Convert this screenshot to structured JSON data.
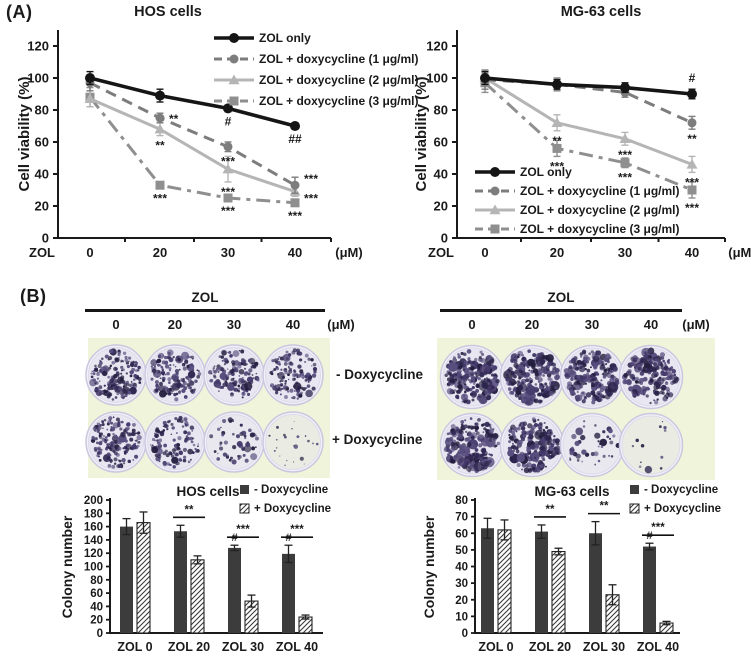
{
  "panel_a": {
    "label": "(A)"
  },
  "panel_b": {
    "label": "(B)",
    "row_labels": [
      "- Doxycycline",
      "+ Doxycycline"
    ],
    "assays": [
      {
        "cell_line": "HOS",
        "header": "ZOL",
        "concentrations": [
          "0",
          "20",
          "30",
          "40"
        ],
        "unit": "(μM)",
        "colony_density": [
          [
            170,
            160,
            145,
            125
          ],
          [
            170,
            115,
            52,
            22
          ]
        ]
      },
      {
        "cell_line": "MG-63",
        "header": "ZOL",
        "concentrations": [
          "0",
          "20",
          "30",
          "40"
        ],
        "unit": "(μM)",
        "colony_density": [
          [
            210,
            205,
            200,
            185
          ],
          [
            215,
            200,
            40,
            12
          ]
        ]
      }
    ],
    "colors": {
      "tray_bg": "#f0f4da",
      "dish_rim": "#cbc7e0",
      "dish_fill": "#e8e6f1",
      "dish_fill_mid": "#e9e8ef",
      "dish_fill_sparse": "#eaece3",
      "colony": "#342a58"
    }
  },
  "chart_data": [
    {
      "id": "hos-viability",
      "type": "line",
      "title": "HOS cells",
      "x_axis_label": "ZOL",
      "x_unit": "(μM)",
      "categories": [
        "0",
        "20",
        "30",
        "40"
      ],
      "ylabel": "Cell viability (%)",
      "ylim": [
        0,
        130
      ],
      "yticks": [
        0,
        20,
        40,
        60,
        80,
        100,
        120
      ],
      "grid": false,
      "legend_position": "top-right",
      "series": [
        {
          "name": "ZOL only",
          "values": [
            100,
            89,
            81,
            70
          ],
          "err": [
            4,
            4,
            2,
            2
          ],
          "sig": [
            "",
            "",
            "#",
            "##"
          ],
          "sig_pos": [
            "",
            "",
            "b",
            "b"
          ],
          "color": "#151515",
          "dash": "solid",
          "marker": "circle"
        },
        {
          "name": "ZOL + doxycycline (1 μg/ml)",
          "values": [
            97,
            75,
            57,
            33
          ],
          "err": [
            5,
            3,
            3,
            5
          ],
          "sig": [
            "",
            "**",
            "***",
            "***"
          ],
          "sig_pos": [
            "",
            "r",
            "b",
            "ru"
          ],
          "color": "#7d7d7d",
          "dash": "dashed",
          "marker": "circle"
        },
        {
          "name": "ZOL + doxycycline (2 μg/ml)",
          "values": [
            87,
            68,
            43,
            29
          ],
          "err": [
            5,
            4,
            8,
            3
          ],
          "sig": [
            "",
            "**",
            "***",
            "***"
          ],
          "sig_pos": [
            "",
            "b",
            "b",
            "rd"
          ],
          "color": "#b5b5b5",
          "dash": "solid",
          "marker": "triangle"
        },
        {
          "name": "ZOL + doxycycline (3 μg/ml)",
          "values": [
            88,
            33,
            25,
            22
          ],
          "err": [
            6,
            2,
            2,
            2
          ],
          "sig": [
            "",
            "***",
            "***",
            "***"
          ],
          "sig_pos": [
            "",
            "b",
            "b",
            "b"
          ],
          "color": "#8f8f8f",
          "dash": "dashdot",
          "marker": "square"
        }
      ]
    },
    {
      "id": "mg63-viability",
      "type": "line",
      "title": "MG-63 cells",
      "x_axis_label": "ZOL",
      "x_unit": "(μM)",
      "categories": [
        "0",
        "20",
        "30",
        "40"
      ],
      "ylabel": "Cell viability (%)",
      "ylim": [
        0,
        130
      ],
      "yticks": [
        0,
        20,
        40,
        60,
        80,
        100,
        120
      ],
      "grid": false,
      "legend_position": "bottom-left",
      "series": [
        {
          "name": "ZOL only",
          "values": [
            100,
            96,
            94,
            90
          ],
          "err": [
            4,
            3,
            3,
            3
          ],
          "sig": [
            "",
            "",
            "",
            "#"
          ],
          "sig_pos": [
            "",
            "",
            "",
            "a"
          ],
          "color": "#151515",
          "dash": "solid",
          "marker": "circle"
        },
        {
          "name": "ZOL + doxycycline (1 μg/ml)",
          "values": [
            99,
            96,
            91,
            72
          ],
          "err": [
            6,
            4,
            3,
            4
          ],
          "sig": [
            "",
            "",
            "",
            "**"
          ],
          "sig_pos": [
            "",
            "",
            "",
            "b"
          ],
          "color": "#7d7d7d",
          "dash": "dashed",
          "marker": "circle"
        },
        {
          "name": "ZOL + doxycycline (2 μg/ml)",
          "values": [
            100,
            72,
            62,
            46
          ],
          "err": [
            4,
            5,
            4,
            5
          ],
          "sig": [
            "",
            "**",
            "***",
            "***"
          ],
          "sig_pos": [
            "",
            "b",
            "b",
            "b"
          ],
          "color": "#b5b5b5",
          "dash": "solid",
          "marker": "triangle"
        },
        {
          "name": "ZOL + doxycycline (3 μg/ml)",
          "values": [
            97,
            56,
            47,
            30
          ],
          "err": [
            6,
            5,
            3,
            5
          ],
          "sig": [
            "",
            "***",
            "***",
            "***"
          ],
          "sig_pos": [
            "",
            "b",
            "b",
            "b"
          ],
          "color": "#8f8f8f",
          "dash": "dashdot",
          "marker": "square"
        }
      ]
    },
    {
      "id": "hos-colony",
      "type": "bar",
      "title": "HOS cells",
      "categories": [
        "ZOL 0",
        "ZOL 20",
        "ZOL 30",
        "ZOL 40"
      ],
      "ylabel": "Colony number",
      "ylim": [
        0,
        200
      ],
      "ytick_step": 20,
      "grid": false,
      "legend_position": "top-right",
      "series": [
        {
          "name": "- Doxycycline",
          "values": [
            160,
            153,
            128,
            119
          ],
          "err": [
            12,
            9,
            4,
            13
          ],
          "hash": [
            "",
            "",
            "#",
            "#"
          ],
          "fill": "solid"
        },
        {
          "name": "+ Doxycycline",
          "values": [
            166,
            110,
            48,
            24
          ],
          "err": [
            16,
            6,
            9,
            3
          ],
          "hash": [
            "",
            "",
            "",
            ""
          ],
          "fill": "hatched"
        }
      ],
      "pair_sig": [
        "",
        "**",
        "***",
        "***"
      ]
    },
    {
      "id": "mg63-colony",
      "type": "bar",
      "title": "MG-63 cells",
      "categories": [
        "ZOL 0",
        "ZOL 20",
        "ZOL 30",
        "ZOL 40"
      ],
      "ylabel": "Colony number",
      "ylim": [
        0,
        80
      ],
      "ytick_step": 10,
      "grid": false,
      "legend_position": "top-right",
      "series": [
        {
          "name": "- Doxycycline",
          "values": [
            63,
            61,
            60,
            52
          ],
          "err": [
            6,
            4,
            7,
            2
          ],
          "hash": [
            "",
            "",
            "",
            "#"
          ],
          "fill": "solid"
        },
        {
          "name": "+ Doxycycline",
          "values": [
            62,
            49,
            23,
            6
          ],
          "err": [
            6,
            2,
            6,
            1
          ],
          "hash": [
            "",
            "",
            "",
            ""
          ],
          "fill": "hatched"
        }
      ],
      "pair_sig": [
        "",
        "**",
        "**",
        "***"
      ]
    }
  ],
  "style_colors": {
    "bar_dark": "#3c3c3c",
    "axis": "#1a1a1a",
    "sig": "#333333"
  }
}
